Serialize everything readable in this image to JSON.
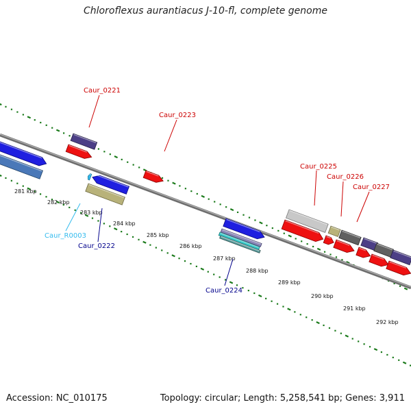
{
  "title": "Chloroflexus aurantiacus J-10-fl, complete genome",
  "footer": {
    "accession": "Accession: NC_010175",
    "topology": "Topology: circular; Length: 5,258,541 bp; Genes: 3,911"
  },
  "colors": {
    "label_top": "#cc0000",
    "label_bottom_gene": "#00008b",
    "label_rna": "#33bbee",
    "scale_dots": "#1a7a1a",
    "backbone": "#888888"
  },
  "kbp_labels": [
    "281 kbp",
    "282 kbp",
    "283 kbp",
    "284 kbp",
    "285 kbp",
    "286 kbp",
    "287 kbp",
    "288 kbp",
    "289 kbp",
    "290 kbp",
    "291 kbp",
    "292 kbp"
  ],
  "genes_top": [
    {
      "name": "Caur_0221"
    },
    {
      "name": "Caur_0223"
    },
    {
      "name": "Caur_0225"
    },
    {
      "name": "Caur_0226"
    },
    {
      "name": "Caur_0227"
    }
  ],
  "genes_bottom": [
    {
      "name": "Caur_R0003",
      "kind": "rna"
    },
    {
      "name": "Caur_0222",
      "kind": "gene"
    },
    {
      "name": "Caur_0224",
      "kind": "gene"
    }
  ]
}
